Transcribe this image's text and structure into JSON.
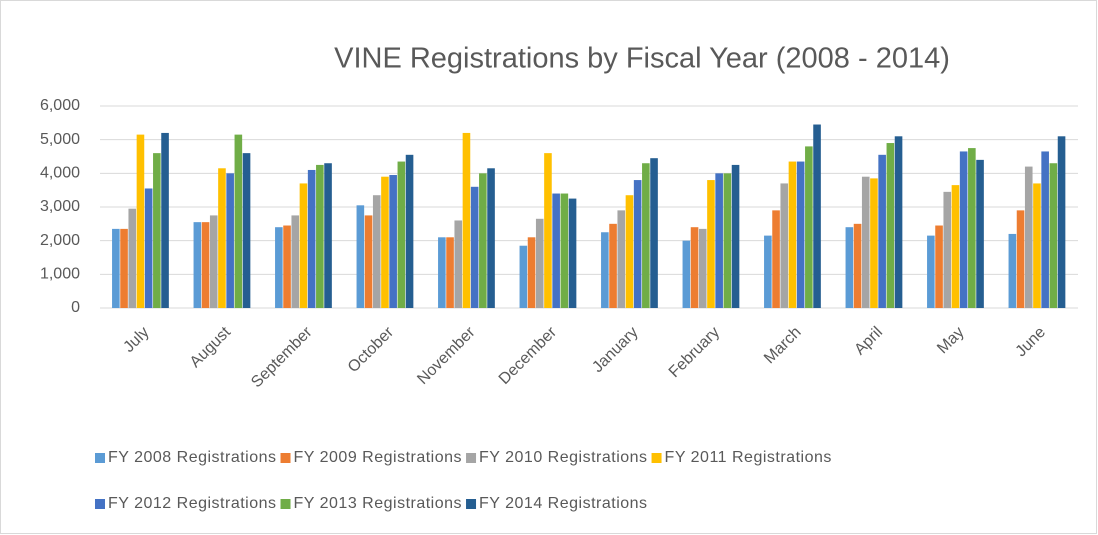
{
  "chart_data": {
    "type": "bar",
    "title": "VINE Registrations by Fiscal Year (2008 - 2014)",
    "categories": [
      "July",
      "August",
      "September",
      "October",
      "November",
      "December",
      "January",
      "February",
      "March",
      "April",
      "May",
      "June"
    ],
    "series": [
      {
        "name": "FY 2008 Registrations",
        "color": "#5b9bd5",
        "values": [
          2350,
          2550,
          2400,
          3050,
          2100,
          1850,
          2250,
          2000,
          2150,
          2400,
          2150,
          2200
        ]
      },
      {
        "name": "FY 2009 Registrations",
        "color": "#ed7d31",
        "values": [
          2350,
          2550,
          2450,
          2750,
          2100,
          2100,
          2500,
          2400,
          2900,
          2500,
          2450,
          2900
        ]
      },
      {
        "name": "FY 2010 Registrations",
        "color": "#a5a5a5",
        "values": [
          2950,
          2750,
          2750,
          3350,
          2600,
          2650,
          2900,
          2350,
          3700,
          3900,
          3450,
          4200
        ]
      },
      {
        "name": "FY 2011 Registrations",
        "color": "#ffc000",
        "values": [
          5150,
          4150,
          3700,
          3900,
          5200,
          4600,
          3350,
          3800,
          4350,
          3850,
          3650,
          3700
        ]
      },
      {
        "name": "FY 2012 Registrations",
        "color": "#4472c4",
        "values": [
          3550,
          4000,
          4100,
          3950,
          3600,
          3400,
          3800,
          4000,
          4350,
          4550,
          4650,
          4650
        ]
      },
      {
        "name": "FY 2013 Registrations",
        "color": "#70ad47",
        "values": [
          4600,
          5150,
          4250,
          4350,
          4000,
          3400,
          4300,
          4000,
          4800,
          4900,
          4750,
          4300
        ]
      },
      {
        "name": "FY 2014 Registrations",
        "color": "#255e91",
        "values": [
          5200,
          4600,
          4300,
          4550,
          4150,
          3250,
          4450,
          4250,
          5450,
          5100,
          4400,
          5100
        ]
      }
    ],
    "ylim": [
      0,
      6000
    ],
    "yticks": [
      0,
      {
        "value": 1000,
        "label": "1,000"
      },
      {
        "value": 2000,
        "label": "2,000"
      },
      {
        "value": 3000,
        "label": "3,000"
      },
      {
        "value": 4000,
        "label": "4,000"
      },
      {
        "value": 5000,
        "label": "5,000"
      },
      {
        "value": 6000,
        "label": "6,000"
      }
    ],
    "grid": true,
    "legend": "bottom"
  }
}
